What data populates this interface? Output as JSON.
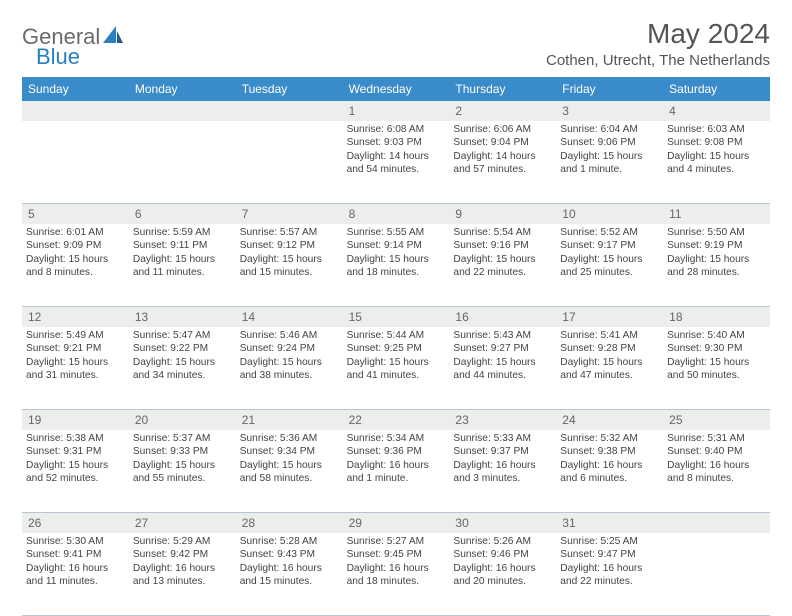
{
  "logo": {
    "text1": "General",
    "text2": "Blue"
  },
  "title": "May 2024",
  "location": "Cothen, Utrecht, The Netherlands",
  "colors": {
    "header_bg": "#3a8bc9",
    "strip_bg": "#eceded",
    "text": "#444444",
    "divider": "#b8c5d0"
  },
  "weekdays": [
    "Sunday",
    "Monday",
    "Tuesday",
    "Wednesday",
    "Thursday",
    "Friday",
    "Saturday"
  ],
  "weeks": [
    [
      {
        "n": "",
        "sunrise": "",
        "sunset": "",
        "daylight": ""
      },
      {
        "n": "",
        "sunrise": "",
        "sunset": "",
        "daylight": ""
      },
      {
        "n": "",
        "sunrise": "",
        "sunset": "",
        "daylight": ""
      },
      {
        "n": "1",
        "sunrise": "Sunrise: 6:08 AM",
        "sunset": "Sunset: 9:03 PM",
        "daylight": "Daylight: 14 hours and 54 minutes."
      },
      {
        "n": "2",
        "sunrise": "Sunrise: 6:06 AM",
        "sunset": "Sunset: 9:04 PM",
        "daylight": "Daylight: 14 hours and 57 minutes."
      },
      {
        "n": "3",
        "sunrise": "Sunrise: 6:04 AM",
        "sunset": "Sunset: 9:06 PM",
        "daylight": "Daylight: 15 hours and 1 minute."
      },
      {
        "n": "4",
        "sunrise": "Sunrise: 6:03 AM",
        "sunset": "Sunset: 9:08 PM",
        "daylight": "Daylight: 15 hours and 4 minutes."
      }
    ],
    [
      {
        "n": "5",
        "sunrise": "Sunrise: 6:01 AM",
        "sunset": "Sunset: 9:09 PM",
        "daylight": "Daylight: 15 hours and 8 minutes."
      },
      {
        "n": "6",
        "sunrise": "Sunrise: 5:59 AM",
        "sunset": "Sunset: 9:11 PM",
        "daylight": "Daylight: 15 hours and 11 minutes."
      },
      {
        "n": "7",
        "sunrise": "Sunrise: 5:57 AM",
        "sunset": "Sunset: 9:12 PM",
        "daylight": "Daylight: 15 hours and 15 minutes."
      },
      {
        "n": "8",
        "sunrise": "Sunrise: 5:55 AM",
        "sunset": "Sunset: 9:14 PM",
        "daylight": "Daylight: 15 hours and 18 minutes."
      },
      {
        "n": "9",
        "sunrise": "Sunrise: 5:54 AM",
        "sunset": "Sunset: 9:16 PM",
        "daylight": "Daylight: 15 hours and 22 minutes."
      },
      {
        "n": "10",
        "sunrise": "Sunrise: 5:52 AM",
        "sunset": "Sunset: 9:17 PM",
        "daylight": "Daylight: 15 hours and 25 minutes."
      },
      {
        "n": "11",
        "sunrise": "Sunrise: 5:50 AM",
        "sunset": "Sunset: 9:19 PM",
        "daylight": "Daylight: 15 hours and 28 minutes."
      }
    ],
    [
      {
        "n": "12",
        "sunrise": "Sunrise: 5:49 AM",
        "sunset": "Sunset: 9:21 PM",
        "daylight": "Daylight: 15 hours and 31 minutes."
      },
      {
        "n": "13",
        "sunrise": "Sunrise: 5:47 AM",
        "sunset": "Sunset: 9:22 PM",
        "daylight": "Daylight: 15 hours and 34 minutes."
      },
      {
        "n": "14",
        "sunrise": "Sunrise: 5:46 AM",
        "sunset": "Sunset: 9:24 PM",
        "daylight": "Daylight: 15 hours and 38 minutes."
      },
      {
        "n": "15",
        "sunrise": "Sunrise: 5:44 AM",
        "sunset": "Sunset: 9:25 PM",
        "daylight": "Daylight: 15 hours and 41 minutes."
      },
      {
        "n": "16",
        "sunrise": "Sunrise: 5:43 AM",
        "sunset": "Sunset: 9:27 PM",
        "daylight": "Daylight: 15 hours and 44 minutes."
      },
      {
        "n": "17",
        "sunrise": "Sunrise: 5:41 AM",
        "sunset": "Sunset: 9:28 PM",
        "daylight": "Daylight: 15 hours and 47 minutes."
      },
      {
        "n": "18",
        "sunrise": "Sunrise: 5:40 AM",
        "sunset": "Sunset: 9:30 PM",
        "daylight": "Daylight: 15 hours and 50 minutes."
      }
    ],
    [
      {
        "n": "19",
        "sunrise": "Sunrise: 5:38 AM",
        "sunset": "Sunset: 9:31 PM",
        "daylight": "Daylight: 15 hours and 52 minutes."
      },
      {
        "n": "20",
        "sunrise": "Sunrise: 5:37 AM",
        "sunset": "Sunset: 9:33 PM",
        "daylight": "Daylight: 15 hours and 55 minutes."
      },
      {
        "n": "21",
        "sunrise": "Sunrise: 5:36 AM",
        "sunset": "Sunset: 9:34 PM",
        "daylight": "Daylight: 15 hours and 58 minutes."
      },
      {
        "n": "22",
        "sunrise": "Sunrise: 5:34 AM",
        "sunset": "Sunset: 9:36 PM",
        "daylight": "Daylight: 16 hours and 1 minute."
      },
      {
        "n": "23",
        "sunrise": "Sunrise: 5:33 AM",
        "sunset": "Sunset: 9:37 PM",
        "daylight": "Daylight: 16 hours and 3 minutes."
      },
      {
        "n": "24",
        "sunrise": "Sunrise: 5:32 AM",
        "sunset": "Sunset: 9:38 PM",
        "daylight": "Daylight: 16 hours and 6 minutes."
      },
      {
        "n": "25",
        "sunrise": "Sunrise: 5:31 AM",
        "sunset": "Sunset: 9:40 PM",
        "daylight": "Daylight: 16 hours and 8 minutes."
      }
    ],
    [
      {
        "n": "26",
        "sunrise": "Sunrise: 5:30 AM",
        "sunset": "Sunset: 9:41 PM",
        "daylight": "Daylight: 16 hours and 11 minutes."
      },
      {
        "n": "27",
        "sunrise": "Sunrise: 5:29 AM",
        "sunset": "Sunset: 9:42 PM",
        "daylight": "Daylight: 16 hours and 13 minutes."
      },
      {
        "n": "28",
        "sunrise": "Sunrise: 5:28 AM",
        "sunset": "Sunset: 9:43 PM",
        "daylight": "Daylight: 16 hours and 15 minutes."
      },
      {
        "n": "29",
        "sunrise": "Sunrise: 5:27 AM",
        "sunset": "Sunset: 9:45 PM",
        "daylight": "Daylight: 16 hours and 18 minutes."
      },
      {
        "n": "30",
        "sunrise": "Sunrise: 5:26 AM",
        "sunset": "Sunset: 9:46 PM",
        "daylight": "Daylight: 16 hours and 20 minutes."
      },
      {
        "n": "31",
        "sunrise": "Sunrise: 5:25 AM",
        "sunset": "Sunset: 9:47 PM",
        "daylight": "Daylight: 16 hours and 22 minutes."
      },
      {
        "n": "",
        "sunrise": "",
        "sunset": "",
        "daylight": ""
      }
    ]
  ]
}
